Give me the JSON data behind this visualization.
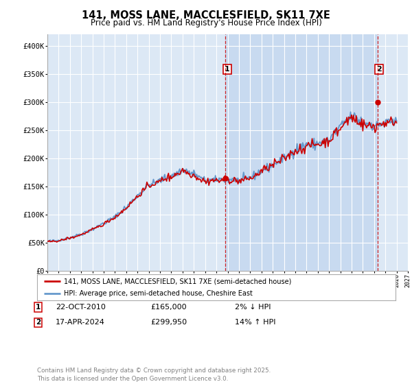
{
  "title": "141, MOSS LANE, MACCLESFIELD, SK11 7XE",
  "subtitle": "Price paid vs. HM Land Registry's House Price Index (HPI)",
  "ylim": [
    0,
    420000
  ],
  "xlim_left": 1995.0,
  "xlim_right": 2027.0,
  "yticks": [
    0,
    50000,
    100000,
    150000,
    200000,
    250000,
    300000,
    350000,
    400000
  ],
  "ytick_labels": [
    "£0",
    "£50K",
    "£100K",
    "£150K",
    "£200K",
    "£250K",
    "£300K",
    "£350K",
    "£400K"
  ],
  "hpi_color": "#6699cc",
  "price_color": "#cc0000",
  "bg_color": "#ffffff",
  "plot_bg_color": "#dce8f5",
  "grid_color": "#ffffff",
  "shade_color": "#c8daf0",
  "legend_label_red": "141, MOSS LANE, MACCLESFIELD, SK11 7XE (semi-detached house)",
  "legend_label_blue": "HPI: Average price, semi-detached house, Cheshire East",
  "sale1_x": 2010.8,
  "sale1_y": 165000,
  "sale2_x": 2024.3,
  "sale2_y": 299950,
  "footnote": "Contains HM Land Registry data © Crown copyright and database right 2025.\nThis data is licensed under the Open Government Licence v3.0."
}
